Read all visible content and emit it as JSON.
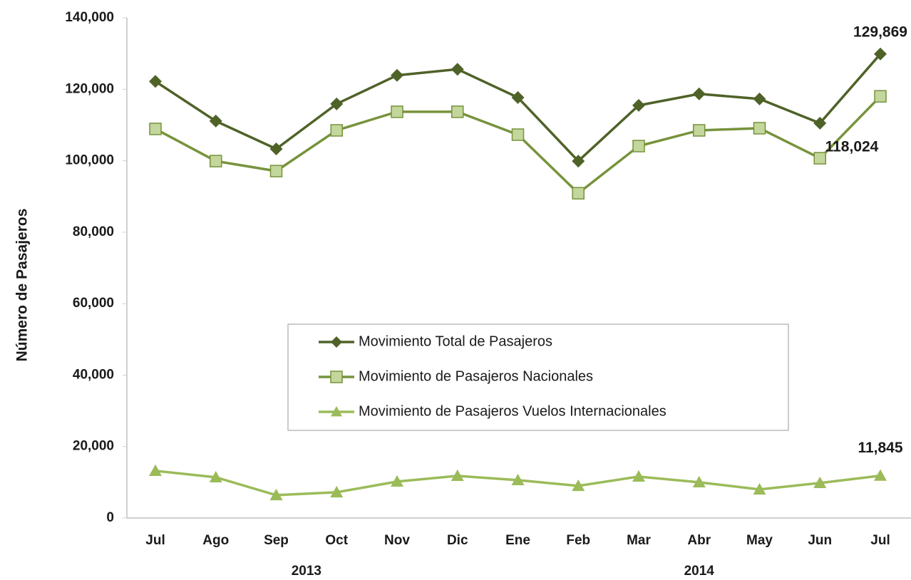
{
  "chart_data": {
    "type": "line",
    "y_label": "Número de Pasajeros",
    "categories": [
      "Jul",
      "Ago",
      "Sep",
      "Oct",
      "Nov",
      "Dic",
      "Ene",
      "Feb",
      "Mar",
      "Abr",
      "May",
      "Jun",
      "Jul"
    ],
    "category_groups": [
      {
        "label": "2013",
        "count": 6
      },
      {
        "label": "2014",
        "count": 7
      }
    ],
    "ylim": [
      0,
      140000
    ],
    "yticks": [
      0,
      {
        "value": 20000,
        "label": "20,000"
      },
      {
        "value": 40000,
        "label": "40,000"
      },
      {
        "value": 60000,
        "label": "60,000"
      },
      {
        "value": 80000,
        "label": "80,000"
      },
      {
        "value": 100000,
        "label": "100,000"
      },
      {
        "value": 120000,
        "label": "120,000"
      },
      {
        "value": 140000,
        "label": "140,000"
      }
    ],
    "grid": false,
    "series": [
      {
        "name": "Movimiento Total de Pasajeros",
        "color": "#4f6228",
        "marker": "diamond",
        "values": [
          122200,
          111100,
          103300,
          115900,
          123900,
          125600,
          117700,
          99900,
          115500,
          118700,
          117300,
          110500,
          129869
        ],
        "value_labels": [
          null,
          null,
          null,
          null,
          null,
          null,
          null,
          null,
          null,
          null,
          null,
          null,
          "129,869"
        ]
      },
      {
        "name": "Movimiento de Pasajeros Nacionales",
        "color": "#77933c",
        "marker": "square",
        "marker_fill": "#c3d69b",
        "values": [
          108900,
          99900,
          97100,
          108500,
          113700,
          113700,
          107300,
          90900,
          104100,
          108500,
          109100,
          100700,
          118024
        ],
        "value_labels": [
          null,
          null,
          null,
          null,
          null,
          null,
          null,
          null,
          null,
          null,
          null,
          null,
          "118,024"
        ]
      },
      {
        "name": "Movimiento de Pasajeros Vuelos Internacionales",
        "color": "#9bbb59",
        "marker": "triangle",
        "values": [
          13200,
          11400,
          6400,
          7200,
          10200,
          11800,
          10600,
          9000,
          11600,
          10000,
          8000,
          9800,
          11845
        ],
        "value_labels": [
          null,
          null,
          null,
          null,
          null,
          null,
          null,
          null,
          null,
          null,
          null,
          null,
          "11,845"
        ]
      }
    ]
  }
}
